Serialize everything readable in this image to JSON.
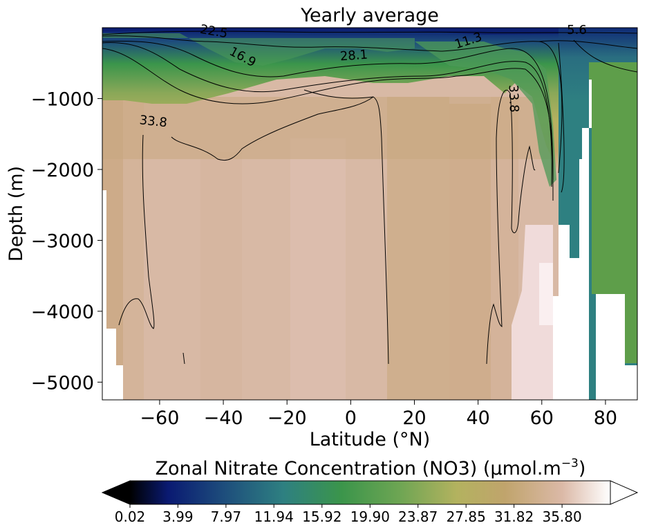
{
  "chart_data": {
    "type": "heatmap",
    "title": "Yearly average",
    "xlabel": "Latitude (°N)",
    "ylabel": "Depth (m)",
    "xlim": [
      -78,
      90
    ],
    "ylim": [
      -5250,
      0
    ],
    "x_ticks": [
      -60,
      -40,
      -20,
      0,
      20,
      40,
      60,
      80
    ],
    "x_tick_labels": [
      "−60",
      "−40",
      "−20",
      "0",
      "20",
      "40",
      "60",
      "80"
    ],
    "y_ticks": [
      -1000,
      -2000,
      -3000,
      -4000,
      -5000
    ],
    "y_tick_labels": [
      "−1000",
      "−2000",
      "−3000",
      "−4000",
      "−5000"
    ],
    "colorbar": {
      "label": "Zonal Nitrate Concentration (NO3) (µmol.m",
      "label_exponent": "−3",
      "label_close": ")",
      "min": 0.02,
      "max": 39.8,
      "extend": "both",
      "colormap": "gist_earth",
      "tick_values": [
        0.02,
        3.99,
        7.97,
        11.94,
        15.92,
        19.9,
        23.87,
        27.85,
        31.82,
        35.8
      ],
      "tick_labels": [
        "0.02",
        "3.99",
        "7.97",
        "11.94",
        "15.92",
        "19.90",
        "23.87",
        "27.85",
        "31.82",
        "35.80"
      ]
    },
    "contour_labels": [
      {
        "text": "22.5",
        "lat": -43,
        "depth": -60,
        "rotate": 10
      },
      {
        "text": "16.9",
        "lat": -34,
        "depth": -420,
        "rotate": 28
      },
      {
        "text": "28.1",
        "lat": 1,
        "depth": -400,
        "rotate": -4
      },
      {
        "text": "11.3",
        "lat": 37,
        "depth": -190,
        "rotate": -18
      },
      {
        "text": "5.6",
        "lat": 71,
        "depth": -40,
        "rotate": 0
      },
      {
        "text": "33.8",
        "lat": -62,
        "depth": -1330,
        "rotate": 6
      },
      {
        "text": "33.8",
        "lat": 51,
        "depth": -1000,
        "rotate": 88
      }
    ]
  }
}
